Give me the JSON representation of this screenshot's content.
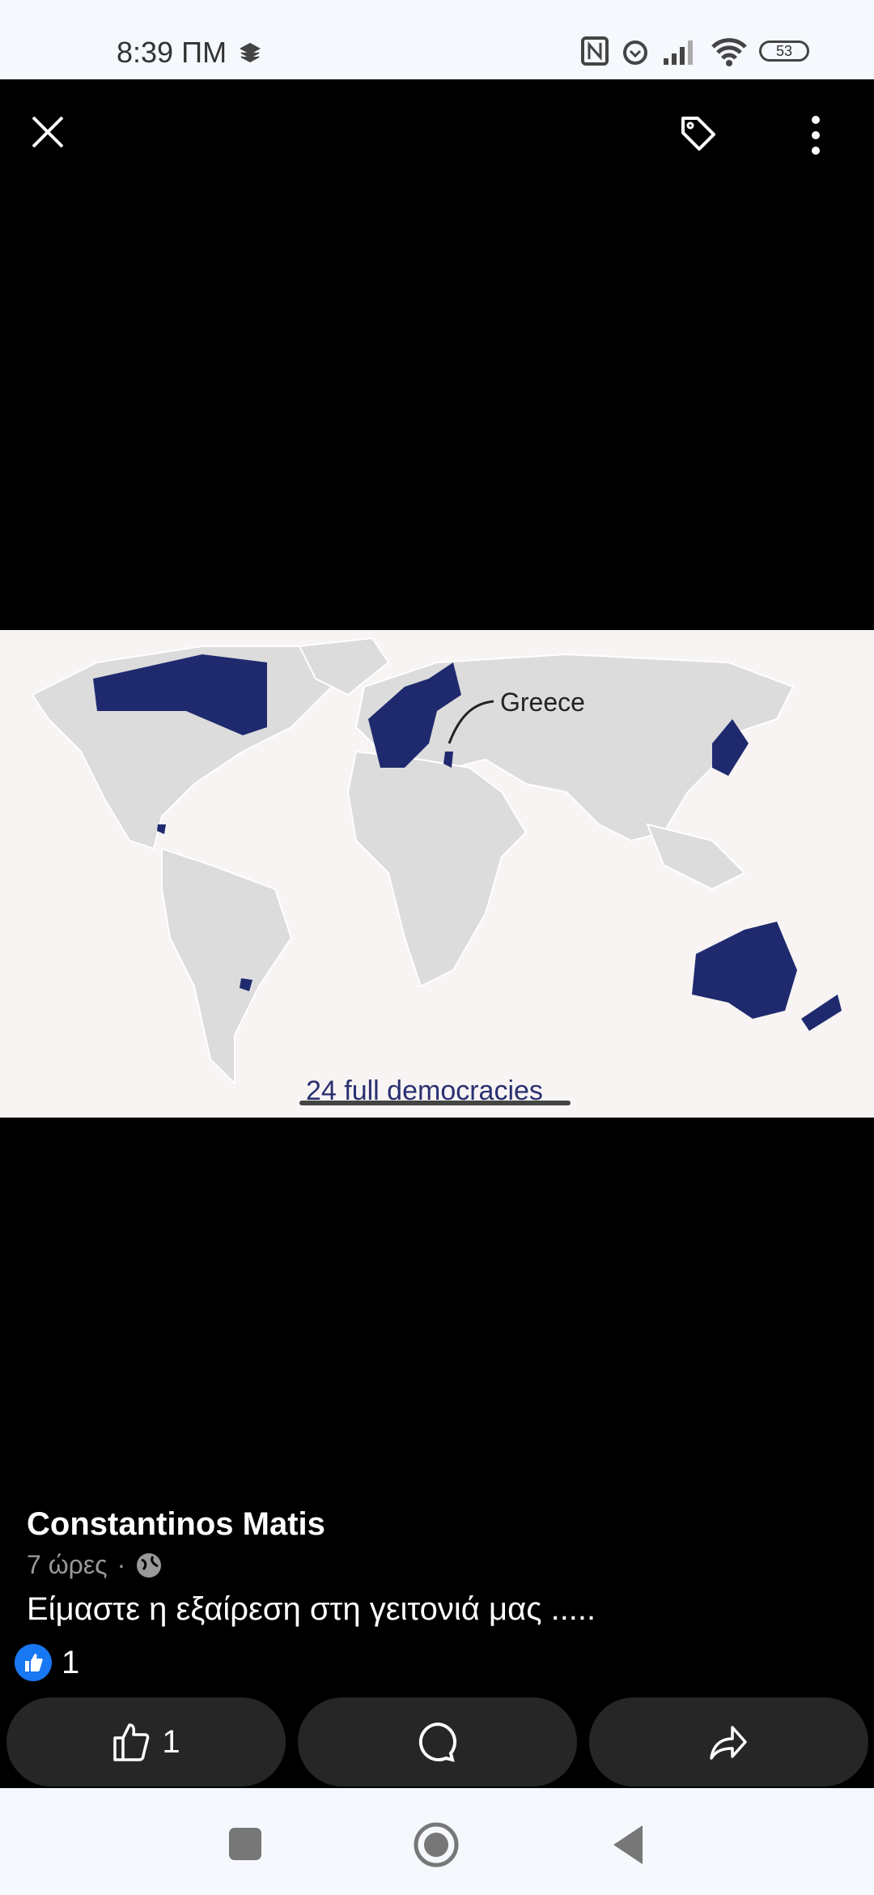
{
  "status_bar": {
    "time": "8:39 ΠΜ",
    "battery": "53"
  },
  "photo": {
    "label_country": "Greece",
    "caption_text": "24 full democracies",
    "highlight_color": "#1f2a6e"
  },
  "post": {
    "author": "Constantinos Matis",
    "time": "7 ώρες",
    "separator": "·",
    "caption": "Είμαστε η εξαίρεση στη γειτονιά μας .....",
    "reaction_count": "1",
    "like_count": "1"
  },
  "colors": {
    "like_blue": "#1877f2",
    "button_bg": "#262626"
  }
}
